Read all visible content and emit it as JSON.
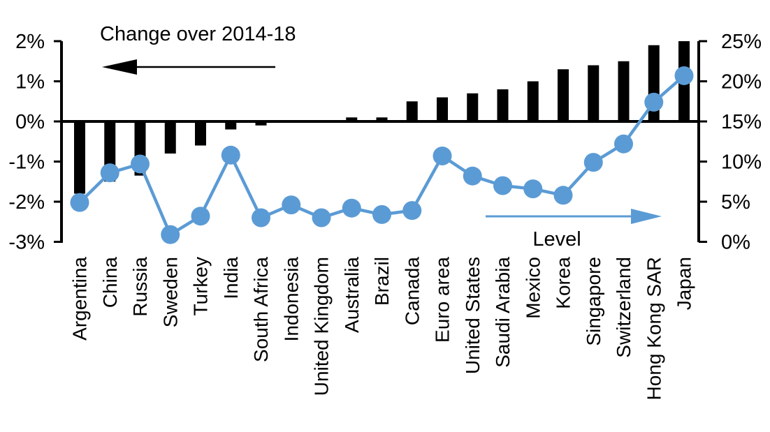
{
  "chart_data": {
    "type": "bar",
    "subtype": "combo-bar-line-dual-axis",
    "categories": [
      "Argentina",
      "China",
      "Russia",
      "Sweden",
      "Turkey",
      "India",
      "South Africa",
      "Indonesia",
      "United Kingdom",
      "Australia",
      "Brazil",
      "Canada",
      "Euro area",
      "United States",
      "Saudi Arabia",
      "Mexico",
      "Korea",
      "Singapore",
      "Switzerland",
      "Hong Kong SAR",
      "Japan"
    ],
    "series": [
      {
        "name": "Change over 2014-18",
        "type": "bar",
        "axis": "left",
        "unit": "%",
        "color": "#000000",
        "values": [
          -1.8,
          -1.5,
          -1.35,
          -0.8,
          -0.6,
          -0.2,
          -0.1,
          0,
          0,
          0.1,
          0.1,
          0.5,
          0.6,
          0.7,
          0.8,
          1.0,
          1.3,
          1.4,
          1.5,
          1.9,
          2.0
        ]
      },
      {
        "name": "Level",
        "type": "line",
        "axis": "right",
        "unit": "%",
        "color": "#5B9BD5",
        "values": [
          4.9,
          8.6,
          9.7,
          0.9,
          3.2,
          10.8,
          3.0,
          4.6,
          3.0,
          4.2,
          3.4,
          3.9,
          10.7,
          8.2,
          7.0,
          6.6,
          5.8,
          9.9,
          12.2,
          17.4,
          20.7
        ]
      }
    ],
    "left_axis": {
      "min": -3,
      "max": 2,
      "tick_step": 1,
      "tick_labels": [
        "2%",
        "1%",
        "0%",
        "-1%",
        "-2%",
        "-3%"
      ]
    },
    "right_axis": {
      "min": 0,
      "max": 25,
      "tick_step": 5,
      "tick_labels": [
        "25%",
        "20%",
        "15%",
        "10%",
        "5%",
        "0%"
      ]
    },
    "grid": false,
    "legend_position": "on-chart-annotations"
  },
  "annotations": [
    {
      "text": "Change over 2014-18",
      "arrow_direction": "left",
      "arrow_color": "#000000"
    },
    {
      "text": "Level",
      "arrow_direction": "right",
      "arrow_color": "#5B9BD5"
    }
  ],
  "colors": {
    "background": "#FFFFFF",
    "bar": "#000000",
    "line": "#5B9BD5",
    "axis": "#000000",
    "text": "#000000"
  }
}
